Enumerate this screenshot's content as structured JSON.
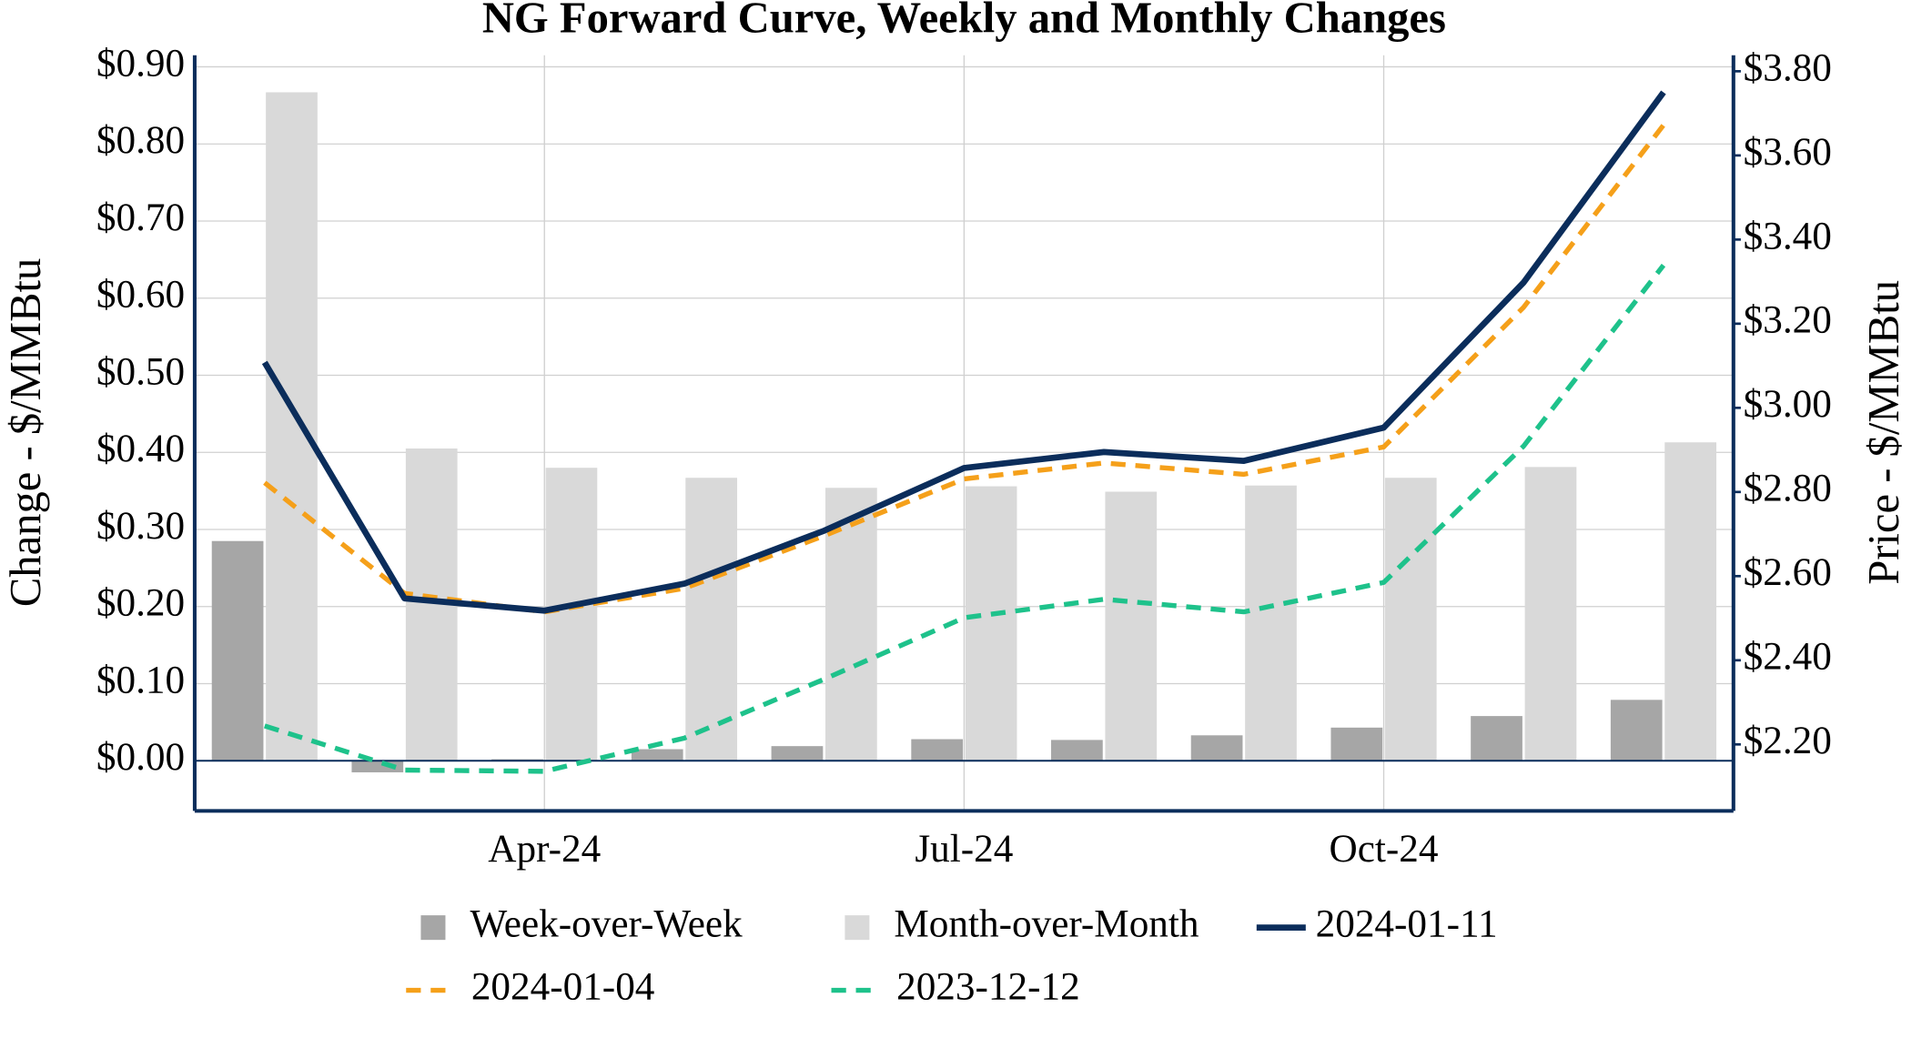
{
  "chart_data": {
    "type": "combo",
    "title": "NG Forward Curve, Weekly and Monthly Changes",
    "ylabel": "Change - $/MMBtu",
    "y2label": "Price - $/MMBtu",
    "categories": [
      null,
      null,
      "Apr-24",
      null,
      null,
      "Jul-24",
      null,
      null,
      "Oct-24",
      null,
      null
    ],
    "ylim": [
      -0.065,
      0.915
    ],
    "yticks": [
      {
        "value": 0,
        "label": "$0.00"
      },
      {
        "value": 0.1,
        "label": "$0.10"
      },
      {
        "value": 0.2,
        "label": "$0.20"
      },
      {
        "value": 0.3,
        "label": "$0.30"
      },
      {
        "value": 0.4,
        "label": "$0.40"
      },
      {
        "value": 0.5,
        "label": "$0.50"
      },
      {
        "value": 0.6,
        "label": "$0.60"
      },
      {
        "value": 0.7,
        "label": "$0.70"
      },
      {
        "value": 0.8,
        "label": "$0.80"
      },
      {
        "value": 0.9,
        "label": "$0.90"
      }
    ],
    "y2lim": [
      2.042,
      3.838
    ],
    "y2ticks": [
      {
        "value": 2.2,
        "label": "$2.20"
      },
      {
        "value": 2.4,
        "label": "$2.40"
      },
      {
        "value": 2.6,
        "label": "$2.60"
      },
      {
        "value": 2.8,
        "label": "$2.80"
      },
      {
        "value": 3.0,
        "label": "$3.00"
      },
      {
        "value": 3.2,
        "label": "$3.20"
      },
      {
        "value": 3.4,
        "label": "$3.40"
      },
      {
        "value": 3.6,
        "label": "$3.60"
      },
      {
        "value": 3.8,
        "label": "$3.80"
      }
    ],
    "grid": true,
    "legend": "bottom",
    "series": [
      {
        "name": "Week-over-Week",
        "type": "bar",
        "color": "#a6a6a6",
        "values": [
          0.285,
          -0.015,
          0.002,
          0.015,
          0.019,
          0.028,
          0.027,
          0.033,
          0.043,
          0.058,
          0.079
        ]
      },
      {
        "name": "Month-over-Month",
        "type": "bar",
        "color": "#d9d9d9",
        "values": [
          0.867,
          0.405,
          0.38,
          0.367,
          0.354,
          0.356,
          0.349,
          0.357,
          0.367,
          0.381,
          0.413
        ]
      },
      {
        "name": "2024-01-11",
        "type": "line",
        "axis": "y2",
        "color": "#0b2d5b",
        "dashed": false,
        "values": [
          3.108,
          2.547,
          2.518,
          2.582,
          2.708,
          2.857,
          2.895,
          2.874,
          2.953,
          3.298,
          3.75
        ]
      },
      {
        "name": "2024-01-04",
        "type": "line",
        "axis": "y2",
        "color": "#f5a01a",
        "dashed": true,
        "values": [
          2.822,
          2.559,
          2.515,
          2.571,
          2.696,
          2.831,
          2.869,
          2.842,
          2.907,
          3.239,
          3.672
        ]
      },
      {
        "name": "2023-12-12",
        "type": "line",
        "axis": "y2",
        "color": "#1ec28b",
        "dashed": true,
        "values": [
          2.244,
          2.139,
          2.136,
          2.215,
          2.355,
          2.501,
          2.545,
          2.515,
          2.585,
          2.909,
          3.339
        ]
      }
    ]
  }
}
